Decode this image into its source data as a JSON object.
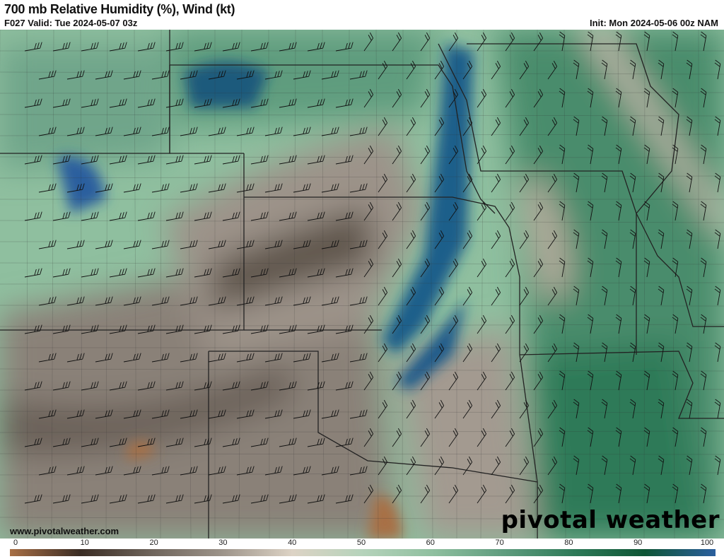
{
  "header": {
    "title": "700 mb Relative Humidity (%), Wind (kt)",
    "valid": "F027 Valid: Tue 2024-05-07 03z",
    "init": "Init: Mon 2024-05-06 00z NAM"
  },
  "footer": {
    "site": "www.pivotalweather.com",
    "brand": "pivotal weather"
  },
  "colorbar": {
    "ticks": [
      "0",
      "10",
      "20",
      "30",
      "40",
      "50",
      "60",
      "70",
      "80",
      "90",
      "100"
    ],
    "colors": [
      "#a86f45",
      "#3a2c24",
      "#6e645b",
      "#9c9389",
      "#ddd3c5",
      "#b5d3bb",
      "#8fbf9f",
      "#5f9c7e",
      "#2e7a58",
      "#0e5535",
      "#2b5f9e"
    ]
  }
}
